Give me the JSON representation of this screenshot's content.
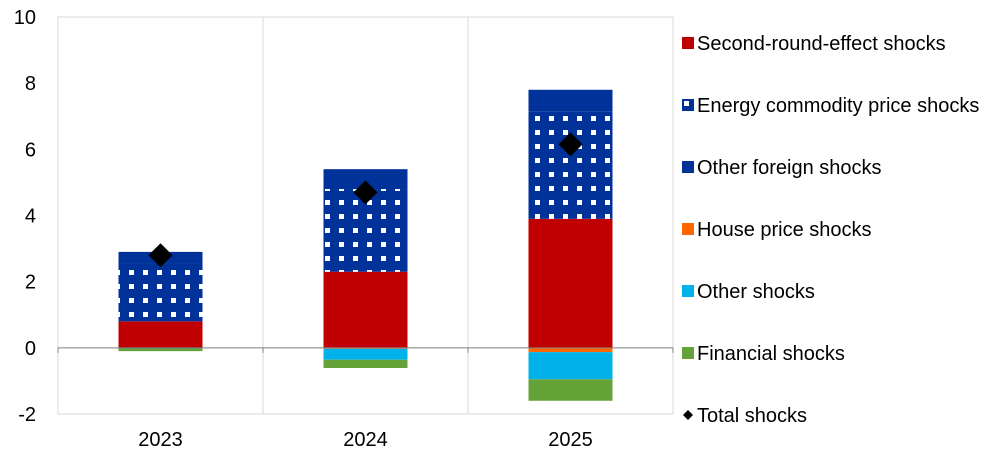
{
  "chart_data": {
    "type": "bar",
    "stacked": true,
    "categories": [
      "2023",
      "2024",
      "2025"
    ],
    "ylim": [
      -2,
      10
    ],
    "yticks": [
      "10",
      "8",
      "6",
      "4",
      "2",
      "0",
      "-2"
    ],
    "grid": true,
    "legend_position": "right",
    "series": [
      {
        "name": "Second-round-effect shocks",
        "color": "#c00000",
        "pattern": "solid",
        "values": [
          0.8,
          2.3,
          3.9
        ]
      },
      {
        "name": "Energy commodity price shocks",
        "color": "#003299",
        "pattern": "dots",
        "values": [
          1.75,
          2.5,
          3.25
        ]
      },
      {
        "name": "Other foreign shocks",
        "color": "#003299",
        "pattern": "solid",
        "values": [
          0.35,
          0.6,
          0.65
        ]
      },
      {
        "name": "House price shocks",
        "color": "#ff6600",
        "pattern": "solid",
        "values": [
          0.0,
          -0.03,
          -0.13
        ]
      },
      {
        "name": "Other shocks",
        "color": "#00b1ea",
        "pattern": "solid",
        "values": [
          -0.02,
          -0.33,
          -0.82
        ]
      },
      {
        "name": "Financial shocks",
        "color": "#65a338",
        "pattern": "solid",
        "values": [
          -0.08,
          -0.25,
          -0.65
        ]
      }
    ],
    "totals": {
      "name": "Total shocks",
      "values": [
        2.8,
        4.7,
        6.15
      ]
    }
  }
}
